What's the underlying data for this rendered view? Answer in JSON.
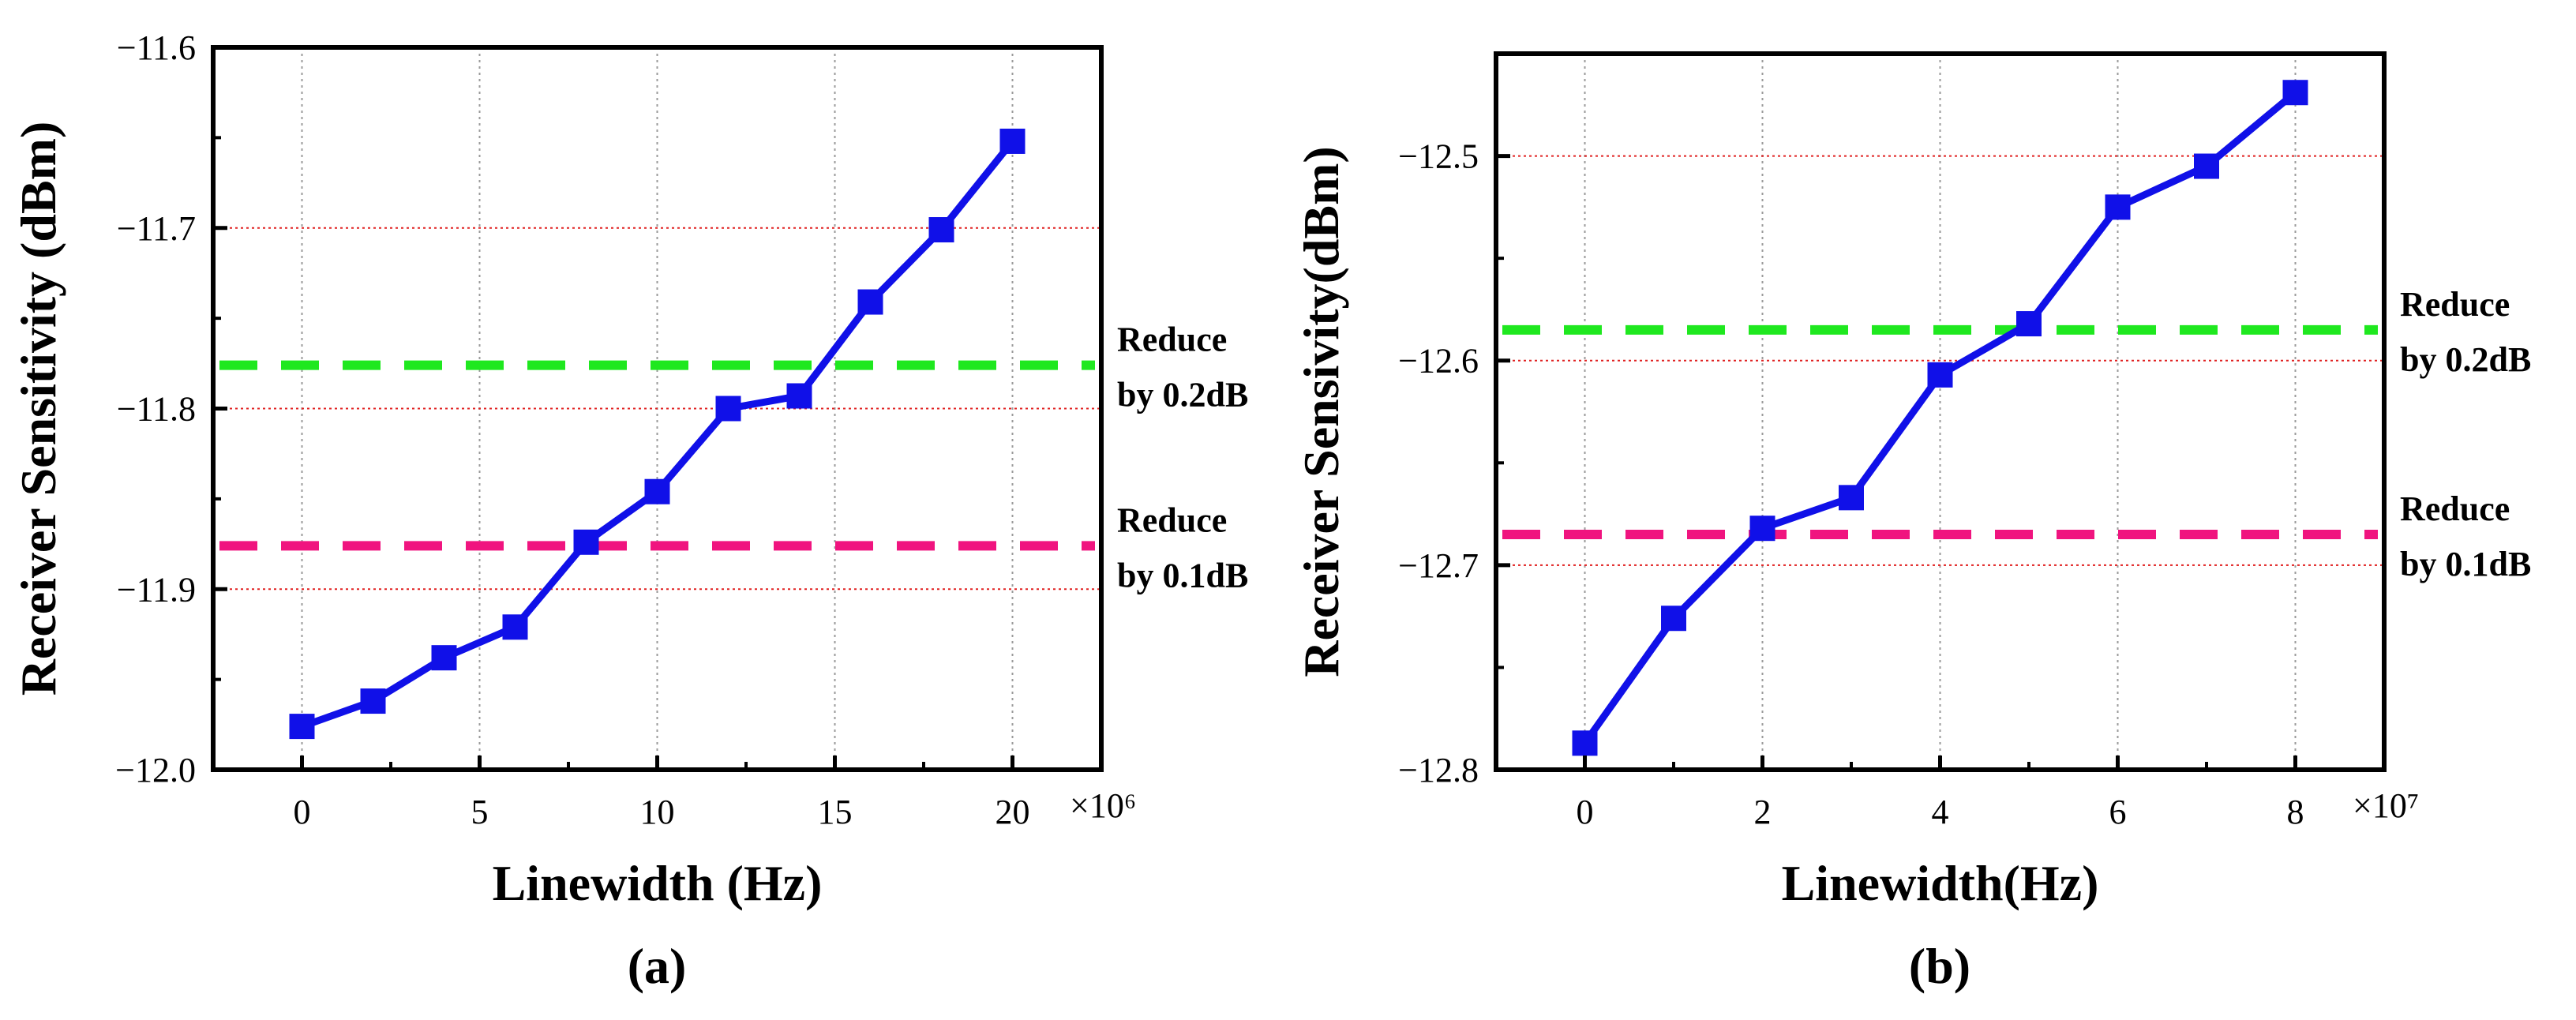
{
  "colors": {
    "series": "#1010e8",
    "green_line": "#1fe81f",
    "pink_line": "#f0147f",
    "vgrid": "#9a9a9a",
    "hgrid": "#e02020",
    "axis": "#000000"
  },
  "chart_data": [
    {
      "type": "line",
      "panel_label": "(a)",
      "xlabel": "Linewidth (Hz)",
      "ylabel": "Receiver Sensitivity (dBm)",
      "x_multiplier": "×10⁶",
      "xlim": [
        -2.5,
        22.5
      ],
      "ylim": [
        -12.0,
        -11.6
      ],
      "xticks": [
        0,
        5,
        10,
        15,
        20
      ],
      "xtick_labels": [
        "0",
        "5",
        "10",
        "15",
        "20"
      ],
      "yticks": [
        -12.0,
        -11.9,
        -11.8,
        -11.7,
        -11.6
      ],
      "ytick_labels": [
        "−12.0",
        "−11.9",
        "−11.8",
        "−11.7",
        "−11.6"
      ],
      "series": [
        {
          "name": "Receiver Sensitivity",
          "x": [
            0,
            2,
            4,
            6,
            8,
            10,
            12,
            14,
            16,
            18,
            20
          ],
          "y": [
            -11.976,
            -11.962,
            -11.938,
            -11.921,
            -11.874,
            -11.846,
            -11.8,
            -11.793,
            -11.741,
            -11.701,
            -11.652
          ]
        }
      ],
      "reference_lines": [
        {
          "name": "Reduce by 0.2dB",
          "y": -11.776,
          "color": "green",
          "label_lines": [
            "Reduce",
            "by 0.2dB"
          ]
        },
        {
          "name": "Reduce by 0.1dB",
          "y": -11.876,
          "color": "pink",
          "label_lines": [
            "Reduce",
            "by 0.1dB"
          ]
        }
      ],
      "grid": true
    },
    {
      "type": "line",
      "panel_label": "(b)",
      "xlabel": "Linewidth(Hz)",
      "ylabel": "Receiver Sensivity(dBm)",
      "x_multiplier": "×10⁷",
      "xlim": [
        -1,
        9
      ],
      "ylim": [
        -12.8,
        -12.45
      ],
      "xticks": [
        0,
        2,
        4,
        6,
        8
      ],
      "xtick_labels": [
        "0",
        "2",
        "4",
        "6",
        "8"
      ],
      "yticks": [
        -12.8,
        -12.7,
        -12.6,
        -12.5
      ],
      "ytick_labels": [
        "−12.8",
        "−12.7",
        "−12.6",
        "−12.5"
      ],
      "series": [
        {
          "name": "Receiver Sensitivity",
          "x": [
            0,
            1,
            2,
            3,
            4,
            5,
            6,
            7,
            8
          ],
          "y": [
            -12.787,
            -12.726,
            -12.682,
            -12.667,
            -12.607,
            -12.582,
            -12.525,
            -12.505,
            -12.469
          ]
        }
      ],
      "reference_lines": [
        {
          "name": "Reduce by 0.2dB",
          "y": -12.585,
          "color": "green",
          "label_lines": [
            "Reduce",
            "by 0.2dB"
          ]
        },
        {
          "name": "Reduce by 0.1dB",
          "y": -12.685,
          "color": "pink",
          "label_lines": [
            "Reduce",
            "by 0.1dB"
          ]
        }
      ],
      "grid": true
    }
  ]
}
